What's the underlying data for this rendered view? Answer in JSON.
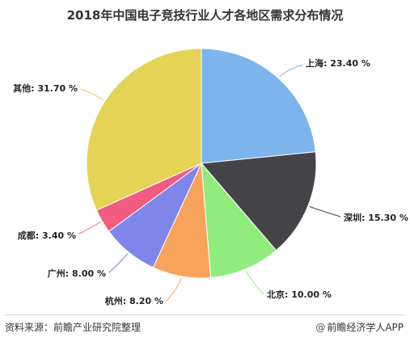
{
  "title": "2018年中国电子竞技行业人才各地区需求分布情况",
  "footer": {
    "source": "资料来源：前瞻产业研究院整理",
    "brand": "前瞻经济学人APP"
  },
  "chart_data": {
    "type": "pie",
    "title": "2018年中国电子竞技行业人才各地区需求分布情况",
    "unit": "%",
    "slices": [
      {
        "name": "上海",
        "value": 23.4,
        "label": "上海: 23.40 %",
        "color": "#7cb5ec"
      },
      {
        "name": "深圳",
        "value": 15.3,
        "label": "深圳: 15.30 %",
        "color": "#434348"
      },
      {
        "name": "北京",
        "value": 10.0,
        "label": "北京: 10.00 %",
        "color": "#90ed7d"
      },
      {
        "name": "杭州",
        "value": 8.2,
        "label": "杭州: 8.20 %",
        "color": "#f7a35c"
      },
      {
        "name": "广州",
        "value": 8.0,
        "label": "广州: 8.00 %",
        "color": "#8085e9"
      },
      {
        "name": "成都",
        "value": 3.4,
        "label": "成都: 3.40 %",
        "color": "#f15c80"
      },
      {
        "name": "其他",
        "value": 31.7,
        "label": "其他: 31.70 %",
        "color": "#e4d354"
      }
    ]
  }
}
